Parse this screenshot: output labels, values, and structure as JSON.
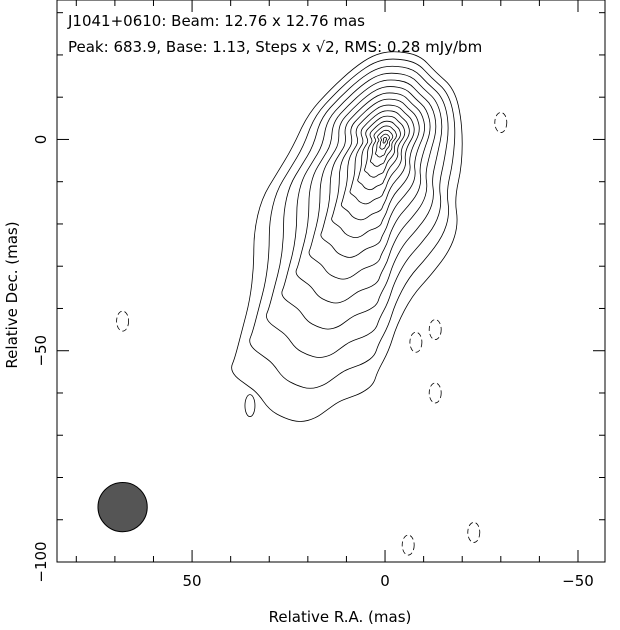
{
  "chart_data": {
    "type": "contour",
    "source": "J1041+0610",
    "header": {
      "line1": "J1041+0610: Beam: 12.76 x 12.76 mas",
      "line2": "Peak: 683.9, Base: 1.13, Steps x √2, RMS: 0.28 mJy/bm"
    },
    "beam_mas": 12.76,
    "peak": 683.9,
    "base": 1.13,
    "step_factor": "√2",
    "rms": 0.28,
    "units": "mJy/bm",
    "xlabel": "Relative R.A. (mas)",
    "ylabel": "Relative Dec. (mas)",
    "xlim": [
      85,
      -57
    ],
    "ylim": [
      -100,
      33
    ],
    "xticks": [
      50,
      0,
      -50
    ],
    "yticks": [
      0,
      -50,
      -100
    ],
    "xtick_labels": [
      "50",
      "0",
      "−50"
    ],
    "ytick_labels": [
      "0",
      "−50",
      "−100"
    ],
    "peak_position": [
      0,
      0
    ],
    "n_contours": 16,
    "contour_levels_ratio": [
      1,
      1.414,
      2,
      2.828,
      4,
      5.657,
      8,
      11.31,
      16,
      22.63,
      32,
      45.25,
      64,
      90.51,
      128,
      181
    ],
    "beam_position": [
      68,
      -87
    ],
    "negative_contours": [
      [
        68,
        -43
      ],
      [
        -8,
        -48
      ],
      [
        -13,
        -45
      ],
      [
        -13,
        -60
      ],
      [
        -6,
        -96
      ],
      [
        -23,
        -93
      ],
      [
        -30,
        4
      ]
    ]
  }
}
